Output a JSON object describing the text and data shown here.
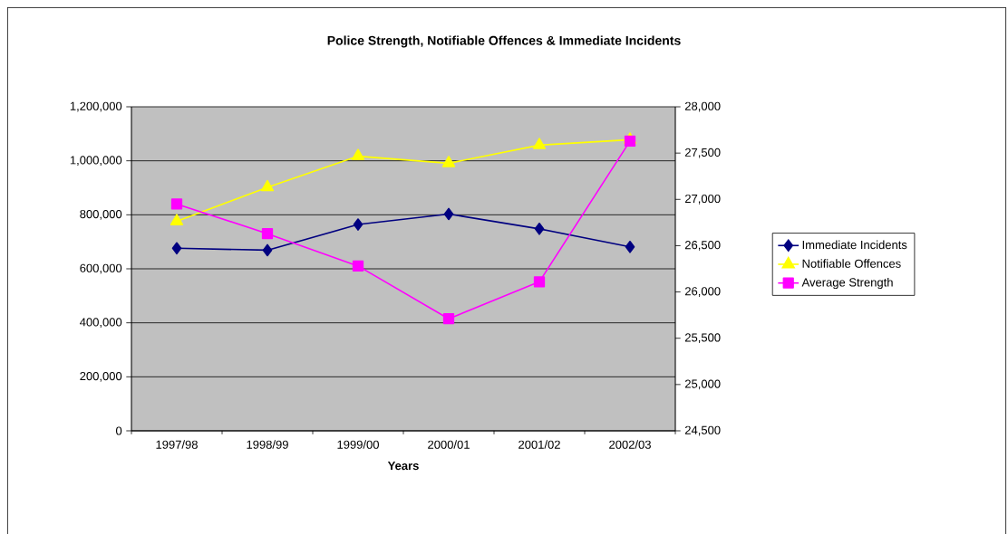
{
  "chart_data": {
    "type": "line",
    "title": "Police Strength, Notifiable Offences & Immediate Incidents",
    "xlabel": "Years",
    "categories": [
      "1997/98",
      "1998/99",
      "1999/00",
      "2000/01",
      "2001/02",
      "2002/03"
    ],
    "series": [
      {
        "name": "Immediate Incidents",
        "color": "#000080",
        "marker": "diamond",
        "values": [
          676000,
          669000,
          764000,
          803000,
          748000,
          681000
        ]
      },
      {
        "name": "Notifiable Offences",
        "color": "#ffff00",
        "marker": "triangle",
        "values": [
          776000,
          902000,
          1017000,
          991000,
          1058000,
          1078000
        ]
      },
      {
        "name": "Average Strength",
        "color": "#ff00ff",
        "marker": "square",
        "axis": "y2",
        "values": [
          26950,
          26630,
          26280,
          25710,
          26110,
          27630
        ]
      }
    ],
    "ylim": [
      0,
      1200000
    ],
    "yticks": [
      {
        "value": 0,
        "label": "0"
      },
      {
        "value": 200000,
        "label": "200,000"
      },
      {
        "value": 400000,
        "label": "400,000"
      },
      {
        "value": 600000,
        "label": "600,000"
      },
      {
        "value": 800000,
        "label": "800,000"
      },
      {
        "value": 1000000,
        "label": "1,000,000"
      },
      {
        "value": 1200000,
        "label": "1,200,000"
      }
    ],
    "y2lim": [
      24500,
      28000
    ],
    "y2ticks": [
      {
        "value": 24500,
        "label": "24,500"
      },
      {
        "value": 25000,
        "label": "25,000"
      },
      {
        "value": 25500,
        "label": "25,500"
      },
      {
        "value": 26000,
        "label": "26,000"
      },
      {
        "value": 26500,
        "label": "26,500"
      },
      {
        "value": 27000,
        "label": "27,000"
      },
      {
        "value": 27500,
        "label": "27,500"
      },
      {
        "value": 28000,
        "label": "28,000"
      }
    ],
    "grid": "y",
    "legend": "right",
    "line_style": "solid"
  }
}
